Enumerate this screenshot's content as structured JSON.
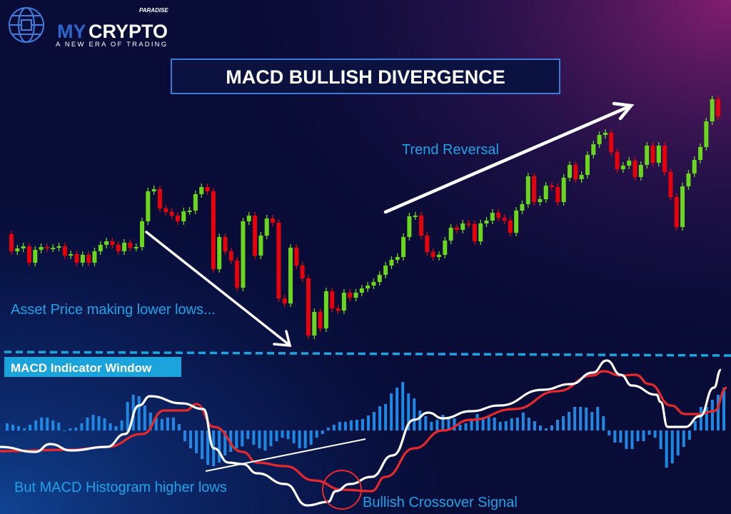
{
  "logo": {
    "brand_my": "MY",
    "brand_crypto": "CRYPTO",
    "brand_suffix": "PARADISE",
    "tagline": "A NEW ERA OF TRADING",
    "icon": "globe-chip-icon"
  },
  "title": "MACD BULLISH DIVERGENCE",
  "annotations": {
    "trend_reversal": "Trend Reversal",
    "lower_lows": "Asset Price making lower lows...",
    "window_label": "MACD Indicator Window",
    "higher_lows": "But MACD Histogram higher lows",
    "crossover": "Bullish Crossover Signal"
  },
  "colors": {
    "bullish": "#6ad61d",
    "bearish": "#e8000b",
    "histogram": "#1e88e5",
    "macd_line": "#ffffff",
    "signal_line": "#e8282b",
    "accent": "#1aa3e8"
  },
  "chart_data": [
    {
      "type": "candlestick",
      "title": "",
      "first_open": 172,
      "close": [
        148,
        152,
        155,
        132,
        150,
        154,
        152,
        153,
        155,
        142,
        144,
        132,
        143,
        132,
        148,
        157,
        162,
        157,
        148,
        160,
        153,
        154,
        190,
        232,
        235,
        208,
        203,
        198,
        190,
        204,
        205,
        228,
        238,
        232,
        123,
        168,
        148,
        135,
        97,
        190,
        198,
        142,
        170,
        194,
        188,
        82,
        75,
        153,
        128,
        110,
        30,
        63,
        40,
        92,
        68,
        65,
        90,
        83,
        90,
        96,
        100,
        105,
        115,
        128,
        136,
        140,
        168,
        197,
        198,
        170,
        147,
        140,
        143,
        163,
        181,
        178,
        187,
        186,
        162,
        187,
        191,
        202,
        195,
        191,
        174,
        205,
        214,
        253,
        217,
        221,
        240,
        238,
        217,
        251,
        269,
        249,
        255,
        283,
        298,
        311,
        314,
        287,
        263,
        268,
        275,
        252,
        269,
        296,
        272,
        296,
        259,
        224,
        182,
        239,
        257,
        276,
        294,
        330,
        361,
        337
      ],
      "axes_visible": false,
      "grid": false
    },
    {
      "type": "line",
      "title": "",
      "axes_visible": false,
      "zero_line_visible": false,
      "series": [
        {
          "x": [
            -2,
            4.1,
            6.6,
            10.2,
            16.3,
            19.4,
            21.8,
            23.7,
            29.1,
            32.8,
            34.6,
            37.1,
            39.5,
            42,
            46.8,
            50.5,
            54.1,
            55.4,
            57.8,
            61.5,
            65.1,
            68.8,
            71.2,
            73.7,
            78.5,
            83.4,
            90.7,
            95.6,
            99.3,
            101.7,
            104.1,
            106,
            110.2,
            110.9,
            112.1,
            115.1,
            117.6,
            120,
            121.2
          ],
          "y": [
            -2.3,
            -3,
            -1.9,
            -2.8,
            -2.3,
            -0.5,
            3.5,
            4.8,
            3.8,
            3,
            -2.5,
            -4.5,
            -4.7,
            -6,
            -7.5,
            -10.5,
            -10,
            -8.5,
            -7.5,
            -6.5,
            -3.5,
            1.5,
            2.5,
            1.7,
            2.7,
            3.5,
            5.7,
            6.5,
            8.1,
            9.8,
            7.8,
            6.3,
            5,
            4,
            0.5,
            0.5,
            2,
            6,
            8.5
          ]
        },
        {
          "x": [
            -2,
            10.2,
            16.3,
            22.4,
            26.1,
            29.8,
            31.6,
            34.6,
            39.5,
            42,
            46.8,
            51.7,
            56.6,
            61.5,
            63.9,
            68.8,
            73.7,
            78.5,
            85.9,
            93.2,
            99.3,
            101.1,
            104.1,
            106.6,
            109,
            112.7,
            115.1,
            117.6,
            120,
            122.2
          ],
          "y": [
            -2.9,
            -2.7,
            -2.3,
            -0.5,
            2.8,
            2.8,
            3.7,
            0.5,
            -3,
            -4.5,
            -5,
            -7,
            -8.3,
            -8.5,
            -6.5,
            -2.5,
            0,
            1.5,
            3,
            5.5,
            7.7,
            8.3,
            7.7,
            7.8,
            6.5,
            3.5,
            2.3,
            2.3,
            2.7,
            6
          ]
        }
      ],
      "histogram": [
        1,
        0.8,
        0.6,
        0.3,
        0.8,
        1.4,
        1.8,
        1.8,
        1.4,
        1.1,
        0,
        0.3,
        0.4,
        1,
        1.8,
        2.2,
        2,
        1.7,
        1,
        0.6,
        1.4,
        4,
        5,
        4.8,
        3.5,
        2.5,
        1.8,
        1.6,
        1.8,
        1.8,
        0.9,
        -1.5,
        -2.5,
        -3.2,
        -4,
        -4.8,
        -5,
        -4.5,
        -3.5,
        -3,
        -2.5,
        -2.2,
        -1.2,
        -2,
        -2.5,
        -2.8,
        -2.2,
        -1.5,
        -1,
        -1.2,
        -1.8,
        -2.5,
        -2.5,
        -2,
        -1,
        -0.5,
        0.4,
        0.8,
        1.2,
        1.2,
        1.4,
        1.5,
        1.6,
        2.1,
        2.6,
        3.4,
        3.7,
        5.2,
        6,
        6.8,
        5.2,
        4.5,
        2.8,
        2,
        1.2,
        1.5,
        2.2,
        1.8,
        1.7,
        0.8,
        1,
        1.4,
        2.3,
        1.8,
        2,
        1.8,
        1.2,
        1.3,
        1.7,
        1.8,
        2.5,
        1.8,
        1.3,
        0.7,
        0.3,
        0.7,
        1.5,
        2,
        2.6,
        3.3,
        3.3,
        3.2,
        2.6,
        3.3,
        2,
        -0.7,
        -1.7,
        -1.7,
        -2.6,
        -2.6,
        -1.5,
        -1.5,
        -0.6,
        -1,
        -2.6,
        -5.2,
        -4.6,
        -3.5,
        -2.3,
        -1.3,
        1.3,
        3.3,
        3.3,
        4.3,
        5,
        6
      ]
    }
  ]
}
